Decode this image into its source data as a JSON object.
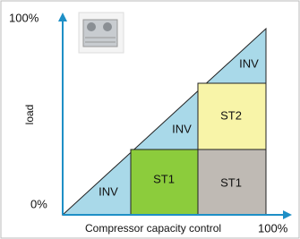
{
  "axes": {
    "y_top": "100%",
    "y_bottom": "0%",
    "y_label": "load",
    "x_label": "Compressor capacity control",
    "x_right": "100%"
  },
  "regions": [
    {
      "label": "INV"
    },
    {
      "label": "INV"
    },
    {
      "label": "INV"
    },
    {
      "label": "ST1"
    },
    {
      "label": "ST1"
    },
    {
      "label": "ST2"
    }
  ]
}
